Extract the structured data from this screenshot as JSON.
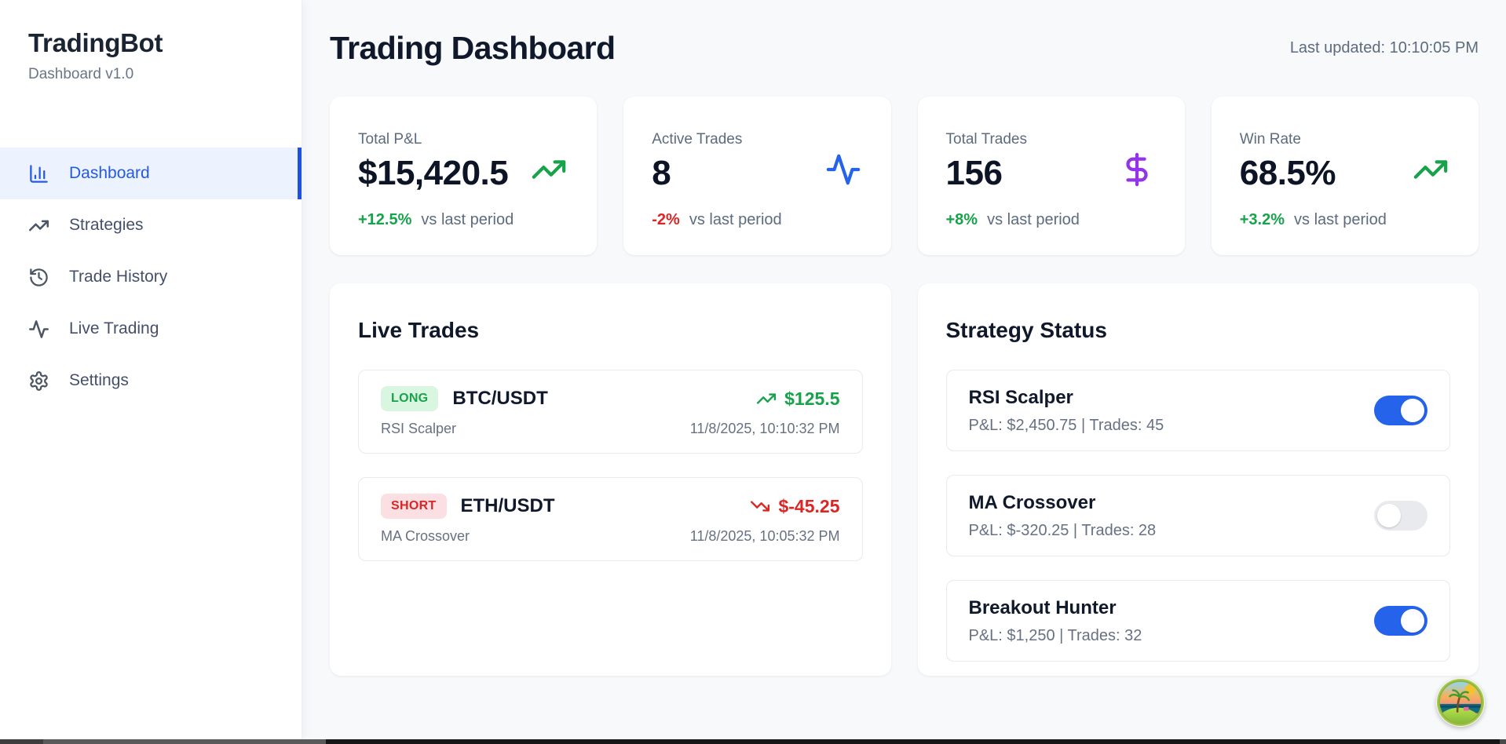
{
  "sidebar": {
    "title": "TradingBot",
    "subtitle": "Dashboard v1.0",
    "items": [
      {
        "label": "Dashboard",
        "icon": "bar-chart-icon",
        "active": true
      },
      {
        "label": "Strategies",
        "icon": "trending-up-icon",
        "active": false
      },
      {
        "label": "Trade History",
        "icon": "history-icon",
        "active": false
      },
      {
        "label": "Live Trading",
        "icon": "activity-icon",
        "active": false
      },
      {
        "label": "Settings",
        "icon": "gear-icon",
        "active": false
      }
    ]
  },
  "header": {
    "title": "Trading Dashboard",
    "last_updated": "Last updated: 10:10:05 PM"
  },
  "stats": [
    {
      "label": "Total P&L",
      "value": "$15,420.5",
      "change": "+12.5%",
      "direction": "up",
      "suffix": "vs last period",
      "icon": "trending-up-icon",
      "icon_color": "#16a34a"
    },
    {
      "label": "Active Trades",
      "value": "8",
      "change": "-2%",
      "direction": "down",
      "suffix": "vs last period",
      "icon": "activity-icon",
      "icon_color": "#2563eb"
    },
    {
      "label": "Total Trades",
      "value": "156",
      "change": "+8%",
      "direction": "up",
      "suffix": "vs last period",
      "icon": "dollar-icon",
      "icon_color": "#9333ea"
    },
    {
      "label": "Win Rate",
      "value": "68.5%",
      "change": "+3.2%",
      "direction": "up",
      "suffix": "vs last period",
      "icon": "trending-up-icon",
      "icon_color": "#16a34a"
    }
  ],
  "live_trades": {
    "title": "Live Trades",
    "trades": [
      {
        "side": "LONG",
        "pair": "BTC/USDT",
        "pnl": "$125.5",
        "direction": "up",
        "trend_icon": "trending-up-icon",
        "strategy": "RSI Scalper",
        "timestamp": "11/8/2025, 10:10:32 PM"
      },
      {
        "side": "SHORT",
        "pair": "ETH/USDT",
        "pnl": "$-45.25",
        "direction": "down",
        "trend_icon": "trending-down-icon",
        "strategy": "MA Crossover",
        "timestamp": "11/8/2025, 10:05:32 PM"
      }
    ]
  },
  "strategy_status": {
    "title": "Strategy Status",
    "strategies": [
      {
        "name": "RSI Scalper",
        "details": "P&L: $2,450.75 | Trades: 45",
        "enabled": true
      },
      {
        "name": "MA Crossover",
        "details": "P&L: $-320.25 | Trades: 28",
        "enabled": false
      },
      {
        "name": "Breakout Hunter",
        "details": "P&L: $1,250 | Trades: 32",
        "enabled": true
      }
    ]
  },
  "colors": {
    "accent_blue": "#2563eb",
    "positive_green": "#16a34a",
    "negative_red": "#dc2626",
    "purple": "#9333ea",
    "main_background": "#f8f9fb",
    "active_nav_background": "#edf3fe"
  }
}
